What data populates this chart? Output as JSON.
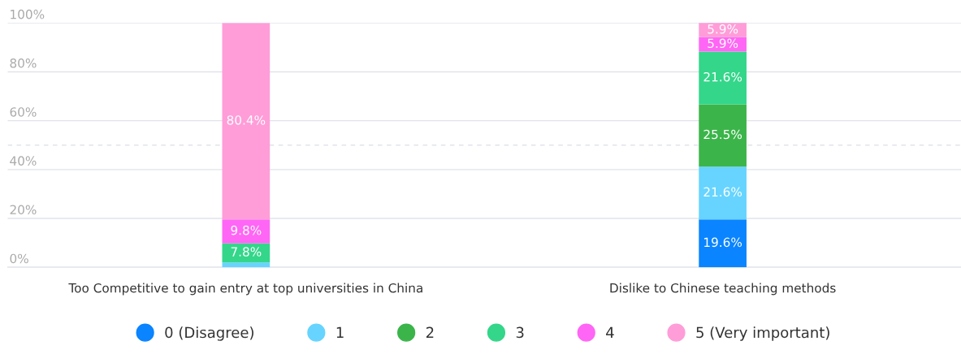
{
  "chart_data": {
    "type": "bar",
    "stacked": true,
    "categories": [
      "Too Competitive to gain entry at top universities in China",
      "Dislike to Chinese teaching methods"
    ],
    "series": [
      {
        "name": "0 (Disagree)",
        "color": "#0a84ff",
        "values": [
          0,
          19.6
        ],
        "value_labels": [
          null,
          "19.6%"
        ]
      },
      {
        "name": "1",
        "color": "#66d4ff",
        "values": [
          2.0,
          21.6
        ],
        "value_labels": [
          null,
          "21.6%"
        ]
      },
      {
        "name": "2",
        "color": "#3bb54a",
        "values": [
          0,
          25.5
        ],
        "value_labels": [
          null,
          "25.5%"
        ]
      },
      {
        "name": "3",
        "color": "#34d68a",
        "values": [
          7.8,
          21.6
        ],
        "value_labels": [
          "7.8%",
          "21.6%"
        ]
      },
      {
        "name": "4",
        "color": "#ff66f5",
        "values": [
          9.8,
          5.9
        ],
        "value_labels": [
          "9.8%",
          "5.9%"
        ]
      },
      {
        "name": "5 (Very important)",
        "color": "#ff9dd8",
        "values": [
          80.4,
          5.9
        ],
        "value_labels": [
          "80.4%",
          "5.9%"
        ]
      }
    ],
    "ylim": [
      0,
      100
    ],
    "yticks": [
      {
        "value": 0,
        "label": "0%"
      },
      {
        "value": 20,
        "label": "20%"
      },
      {
        "value": 40,
        "label": "40%"
      },
      {
        "value": 60,
        "label": "60%"
      },
      {
        "value": 80,
        "label": "80%"
      },
      {
        "value": 100,
        "label": "100%"
      }
    ],
    "ref_lines": [
      {
        "axis": "y",
        "value": 50,
        "label": null,
        "color": "#e0e3ea",
        "line_style": "dashed"
      }
    ],
    "grid": "y",
    "legend": "bottom"
  }
}
